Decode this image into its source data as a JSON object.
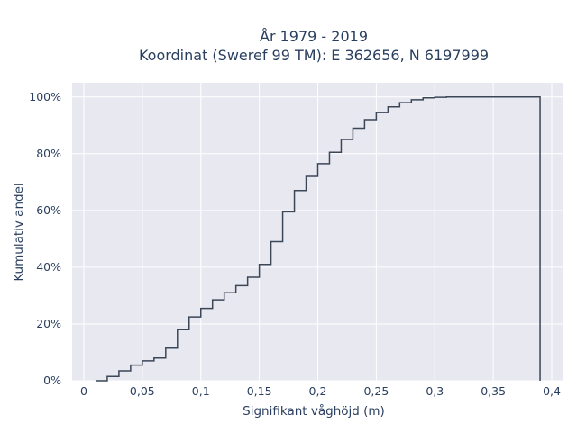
{
  "chart_data": {
    "type": "line",
    "step": true,
    "title_line1": "År 1979 - 2019",
    "title_line2": "Koordinat (Sweref 99 TM): E 362656, N 6197999",
    "xlabel": "Signifikant våghöjd (m)",
    "ylabel": "Kumulativ andel",
    "xlim": [
      -0.01,
      0.41
    ],
    "ylim": [
      0,
      1.05
    ],
    "x_ticks": [
      0,
      0.05,
      0.1,
      0.15,
      0.2,
      0.25,
      0.3,
      0.35,
      0.4
    ],
    "x_tick_labels": [
      "0",
      "0,05",
      "0,1",
      "0,15",
      "0,2",
      "0,25",
      "0,3",
      "0,35",
      "0,4"
    ],
    "y_ticks": [
      0,
      0.2,
      0.4,
      0.6,
      0.8,
      1.0
    ],
    "y_tick_labels": [
      "0%",
      "20%",
      "40%",
      "60%",
      "80%",
      "100%"
    ],
    "grid": true,
    "background": "#e8e8f0",
    "line_color": "#3b4657",
    "x": [
      0.01,
      0.02,
      0.03,
      0.04,
      0.05,
      0.06,
      0.07,
      0.08,
      0.09,
      0.1,
      0.11,
      0.12,
      0.13,
      0.14,
      0.15,
      0.16,
      0.17,
      0.18,
      0.19,
      0.2,
      0.21,
      0.22,
      0.23,
      0.24,
      0.25,
      0.26,
      0.27,
      0.28,
      0.29,
      0.3,
      0.31,
      0.39
    ],
    "values": [
      0.0,
      0.015,
      0.035,
      0.055,
      0.07,
      0.08,
      0.115,
      0.18,
      0.225,
      0.255,
      0.285,
      0.31,
      0.335,
      0.365,
      0.41,
      0.49,
      0.595,
      0.67,
      0.72,
      0.765,
      0.805,
      0.85,
      0.89,
      0.92,
      0.945,
      0.965,
      0.98,
      0.99,
      0.997,
      0.999,
      1.0,
      0.0
    ]
  }
}
